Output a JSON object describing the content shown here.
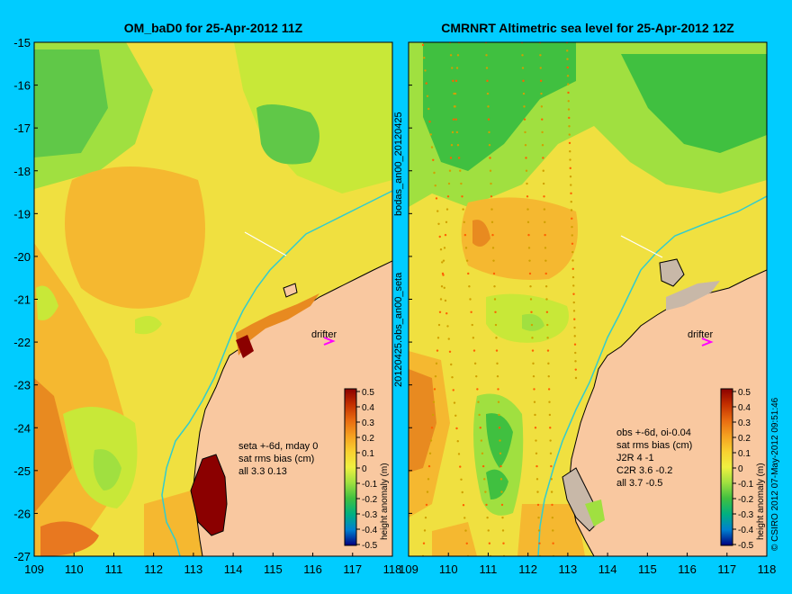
{
  "left_panel": {
    "title": "OM_baD0 for 25-Apr-2012 11Z",
    "annotations": [
      "seta +-6d, mday 0",
      "sat rms bias (cm)",
      "all 3.3 0.13"
    ],
    "drifter_label": "drifter"
  },
  "right_panel": {
    "title": "CMRNRT Altimetric sea level  for 25-Apr-2012 12Z",
    "annotations": [
      "obs +-6d, oi-0.04",
      "sat rms bias (cm)",
      "J2R   4 -1",
      "C2R   3.6 -0.2",
      "all 3.7 -0.5"
    ],
    "drifter_label": "drifter"
  },
  "axes": {
    "y_ticks": [
      "-15",
      "-16",
      "-17",
      "-18",
      "-19",
      "-20",
      "-21",
      "-22",
      "-23",
      "-24",
      "-25",
      "-26",
      "-27"
    ],
    "x_ticks": [
      "109",
      "110",
      "111",
      "112",
      "113",
      "114",
      "115",
      "116",
      "117",
      "118"
    ]
  },
  "colorbar": {
    "label": "height anomaly (m)",
    "ticks": [
      "0.5",
      "0.4",
      "0.3",
      "0.2",
      "0.1",
      "0",
      "-0.1",
      "-0.2",
      "-0.3",
      "-0.4",
      "-0.5"
    ],
    "colors": [
      "#8b0000",
      "#c43000",
      "#e86a10",
      "#f5a020",
      "#f8d030",
      "#f0f040",
      "#a0e040",
      "#40c040",
      "#00b080",
      "#0080d0",
      "#0040c0",
      "#000080"
    ]
  },
  "side_labels": {
    "mid_top": "bodas_an00_20120425",
    "mid_bottom": "20120425.obs_an00_seta",
    "right": "© CSIRO 2012   07-May-2012 09:51:46"
  },
  "colors": {
    "background": "#00ccff",
    "land": "#f9c8a0",
    "coast": "#000000",
    "river": "#33cccc",
    "drifter": "#ff00ff"
  }
}
